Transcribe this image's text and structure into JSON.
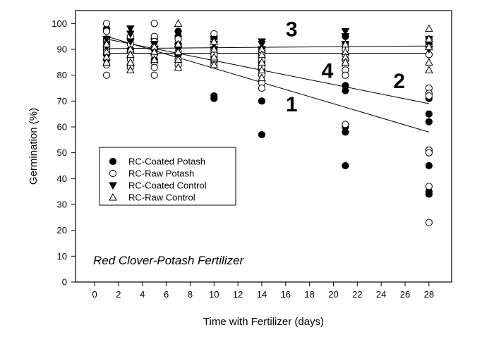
{
  "chart_data": {
    "type": "scatter",
    "xlabel": "Time with Fertilizer (days)",
    "ylabel": "Germination (%)",
    "xlim": [
      -1.6,
      29.9
    ],
    "ylim": [
      0,
      105
    ],
    "x_ticks": [
      0,
      2,
      4,
      6,
      8,
      10,
      12,
      14,
      16,
      18,
      20,
      22,
      24,
      26,
      28
    ],
    "y_ticks": [
      0,
      10,
      20,
      30,
      40,
      50,
      60,
      70,
      80,
      90,
      100
    ],
    "grid": false,
    "legend_position": "center-left",
    "annotation": "Red Clover-Potash Fertilizer",
    "series": [
      {
        "name": "RC-Coated Potash",
        "marker": "filled-circle",
        "points": [
          [
            1,
            98
          ],
          [
            1,
            93
          ],
          [
            1,
            90
          ],
          [
            1,
            88
          ],
          [
            1,
            86
          ],
          [
            3,
            94
          ],
          [
            3,
            90
          ],
          [
            3,
            87
          ],
          [
            3,
            84
          ],
          [
            5,
            94
          ],
          [
            5,
            90
          ],
          [
            5,
            88
          ],
          [
            5,
            86
          ],
          [
            7,
            97
          ],
          [
            7,
            95
          ],
          [
            7,
            92
          ],
          [
            7,
            88
          ],
          [
            10,
            94
          ],
          [
            10,
            90
          ],
          [
            10,
            87
          ],
          [
            10,
            85
          ],
          [
            10,
            72
          ],
          [
            10,
            71
          ],
          [
            14,
            90
          ],
          [
            14,
            85
          ],
          [
            14,
            82
          ],
          [
            14,
            70
          ],
          [
            14,
            57
          ],
          [
            21,
            95
          ],
          [
            21,
            90
          ],
          [
            21,
            86
          ],
          [
            21,
            76
          ],
          [
            21,
            74
          ],
          [
            21,
            60
          ],
          [
            21,
            58
          ],
          [
            21,
            45
          ],
          [
            28,
            92
          ],
          [
            28,
            88
          ],
          [
            28,
            71
          ],
          [
            28,
            65
          ],
          [
            28,
            62
          ],
          [
            28,
            51
          ],
          [
            28,
            50
          ],
          [
            28,
            45
          ],
          [
            28,
            35
          ],
          [
            28,
            34
          ]
        ]
      },
      {
        "name": "RC-Raw Potash",
        "marker": "open-circle",
        "points": [
          [
            1,
            100
          ],
          [
            1,
            97
          ],
          [
            1,
            94
          ],
          [
            1,
            91
          ],
          [
            1,
            89
          ],
          [
            1,
            84
          ],
          [
            1,
            80
          ],
          [
            3,
            95
          ],
          [
            3,
            92
          ],
          [
            3,
            89
          ],
          [
            3,
            86
          ],
          [
            3,
            83
          ],
          [
            5,
            100
          ],
          [
            5,
            95
          ],
          [
            5,
            93
          ],
          [
            5,
            91
          ],
          [
            5,
            88
          ],
          [
            5,
            85
          ],
          [
            5,
            83
          ],
          [
            5,
            80
          ],
          [
            7,
            94
          ],
          [
            7,
            91
          ],
          [
            7,
            89
          ],
          [
            7,
            86
          ],
          [
            7,
            84
          ],
          [
            10,
            96
          ],
          [
            10,
            93
          ],
          [
            10,
            90
          ],
          [
            10,
            88
          ],
          [
            10,
            86
          ],
          [
            10,
            84
          ],
          [
            14,
            90
          ],
          [
            14,
            88
          ],
          [
            14,
            86
          ],
          [
            14,
            83
          ],
          [
            14,
            80
          ],
          [
            14,
            77
          ],
          [
            14,
            75
          ],
          [
            21,
            92
          ],
          [
            21,
            90
          ],
          [
            21,
            88
          ],
          [
            21,
            86
          ],
          [
            21,
            84
          ],
          [
            21,
            82
          ],
          [
            21,
            80
          ],
          [
            21,
            61
          ],
          [
            28,
            94
          ],
          [
            28,
            91
          ],
          [
            28,
            88
          ],
          [
            28,
            75
          ],
          [
            28,
            73
          ],
          [
            28,
            72
          ],
          [
            28,
            51
          ],
          [
            28,
            50
          ],
          [
            28,
            37
          ],
          [
            28,
            23
          ]
        ]
      },
      {
        "name": "RC-Coated Control",
        "marker": "filled-triangle-down",
        "points": [
          [
            1,
            94
          ],
          [
            1,
            91
          ],
          [
            3,
            98
          ],
          [
            3,
            96
          ],
          [
            3,
            93
          ],
          [
            5,
            92
          ],
          [
            5,
            90
          ],
          [
            7,
            91
          ],
          [
            7,
            90
          ],
          [
            10,
            94
          ],
          [
            10,
            92
          ],
          [
            10,
            90
          ],
          [
            14,
            93
          ],
          [
            14,
            92
          ],
          [
            14,
            90
          ],
          [
            21,
            97
          ],
          [
            21,
            95
          ],
          [
            21,
            92
          ],
          [
            28,
            94
          ],
          [
            28,
            92
          ],
          [
            28,
            90
          ]
        ]
      },
      {
        "name": "RC-Raw Control",
        "marker": "open-triangle-up",
        "points": [
          [
            1,
            92
          ],
          [
            1,
            89
          ],
          [
            1,
            87
          ],
          [
            1,
            85
          ],
          [
            3,
            90
          ],
          [
            3,
            88
          ],
          [
            3,
            85
          ],
          [
            3,
            82
          ],
          [
            5,
            91
          ],
          [
            5,
            89
          ],
          [
            5,
            86
          ],
          [
            7,
            100
          ],
          [
            7,
            92
          ],
          [
            7,
            89
          ],
          [
            7,
            86
          ],
          [
            7,
            83
          ],
          [
            10,
            93
          ],
          [
            10,
            90
          ],
          [
            10,
            87
          ],
          [
            10,
            84
          ],
          [
            14,
            90
          ],
          [
            14,
            88
          ],
          [
            14,
            85
          ],
          [
            14,
            82
          ],
          [
            14,
            79
          ],
          [
            21,
            92
          ],
          [
            21,
            89
          ],
          [
            21,
            87
          ],
          [
            21,
            85
          ],
          [
            28,
            98
          ],
          [
            28,
            94
          ],
          [
            28,
            91
          ],
          [
            28,
            85
          ],
          [
            28,
            82
          ]
        ]
      }
    ],
    "regression_lines": [
      {
        "label": "1",
        "from": [
          1,
          95
        ],
        "to": [
          28,
          58
        ],
        "label_pos": [
          16.5,
          66
        ]
      },
      {
        "label": "2",
        "from": [
          1,
          94
        ],
        "to": [
          28,
          69
        ],
        "label_pos": [
          25.5,
          75
        ]
      },
      {
        "label": "3",
        "from": [
          1,
          90.3
        ],
        "to": [
          28,
          91.3
        ],
        "label_pos": [
          16.5,
          95
        ]
      },
      {
        "label": "4",
        "from": [
          1,
          88.5
        ],
        "to": [
          28,
          88.5
        ],
        "label_pos": [
          19.5,
          79
        ]
      }
    ]
  }
}
